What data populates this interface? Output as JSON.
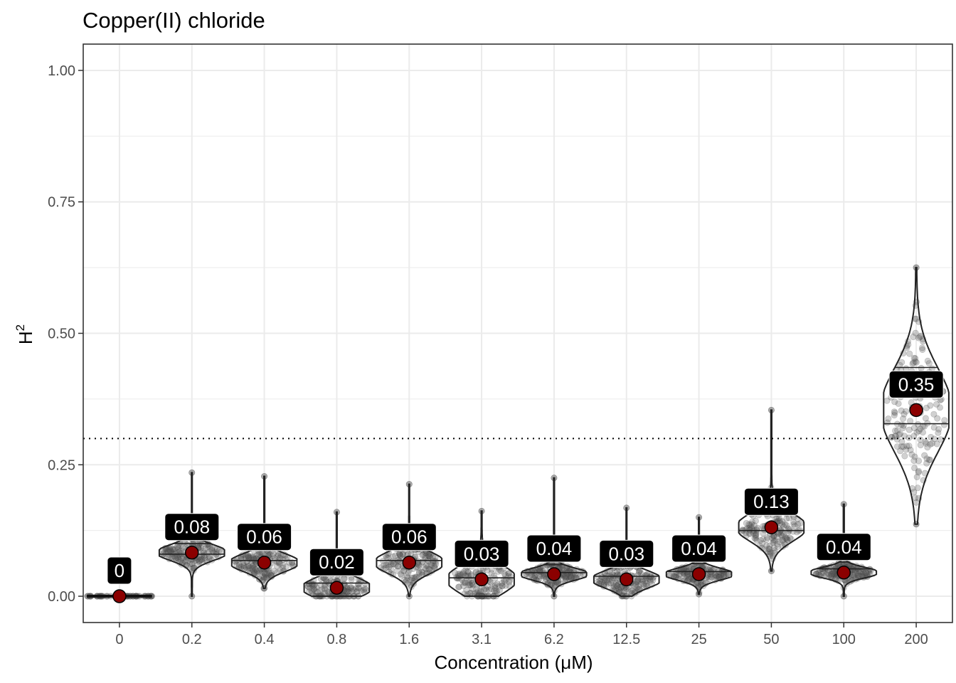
{
  "chart_data": {
    "type": "violin",
    "title": "Copper(II) chloride",
    "xlabel": "Concentration (μM)",
    "ylabel": "H",
    "ylabel_superscript": "2",
    "ylim": [
      -0.05,
      1.05
    ],
    "yticks": [
      0.0,
      0.25,
      0.5,
      0.75,
      1.0
    ],
    "ytick_labels": [
      "0.00",
      "0.25",
      "0.50",
      "0.75",
      "1.00"
    ],
    "reference_line": 0.3,
    "categories": [
      "0",
      "0.2",
      "0.4",
      "0.8",
      "1.6",
      "3.1",
      "6.2",
      "12.5",
      "25",
      "50",
      "100",
      "200"
    ],
    "values": [
      0.0,
      0.083,
      0.064,
      0.016,
      0.064,
      0.032,
      0.042,
      0.032,
      0.042,
      0.131,
      0.045,
      0.354
    ],
    "labels": [
      "0",
      "0.08",
      "0.06",
      "0.02",
      "0.06",
      "0.03",
      "0.04",
      "0.03",
      "0.04",
      "0.13",
      "0.04",
      "0.35"
    ],
    "distributions": [
      {
        "min": 0.0,
        "max": 0.0,
        "q1": 0.0,
        "q3": 0.0
      },
      {
        "min": 0.0,
        "max": 0.235,
        "q1": 0.08,
        "q3": 0.1
      },
      {
        "min": 0.015,
        "max": 0.228,
        "q1": 0.068,
        "q3": 0.09
      },
      {
        "min": 0.0,
        "max": 0.16,
        "q1": 0.025,
        "q3": 0.05
      },
      {
        "min": 0.0,
        "max": 0.213,
        "q1": 0.068,
        "q3": 0.095
      },
      {
        "min": 0.0,
        "max": 0.162,
        "q1": 0.035,
        "q3": 0.07
      },
      {
        "min": 0.0,
        "max": 0.225,
        "q1": 0.045,
        "q3": 0.06
      },
      {
        "min": 0.0,
        "max": 0.168,
        "q1": 0.038,
        "q3": 0.06
      },
      {
        "min": 0.004,
        "max": 0.15,
        "q1": 0.047,
        "q3": 0.062
      },
      {
        "min": 0.048,
        "max": 0.354,
        "q1": 0.125,
        "q3": 0.16
      },
      {
        "min": 0.0,
        "max": 0.175,
        "q1": 0.052,
        "q3": 0.065
      },
      {
        "min": 0.137,
        "max": 0.625,
        "q1": 0.328,
        "q3": 0.435
      }
    ],
    "grid": true,
    "legend": "none",
    "colors": {
      "panel_border": "#333333",
      "grid": "#ebebeb",
      "violin_stroke": "#222222",
      "point_fill": "#8b0000",
      "jitter": "#5a5a5a",
      "label_fill": "#000000",
      "label_text": "#ffffff"
    }
  }
}
